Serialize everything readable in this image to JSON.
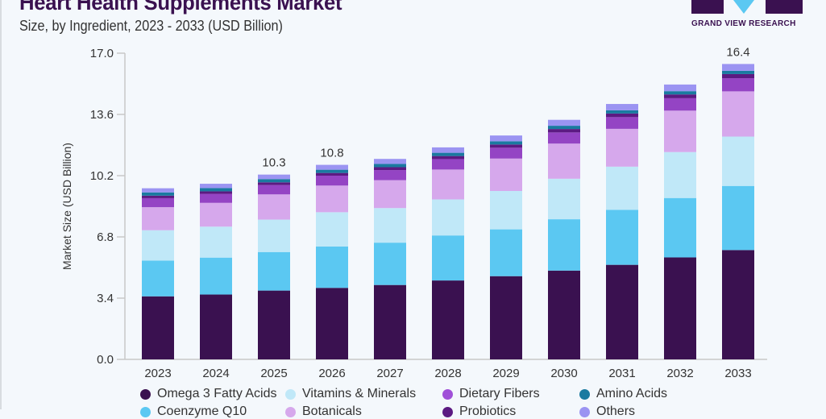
{
  "header": {
    "title": "Heart Health Supplements Market",
    "subtitle": "Size, by Ingredient, 2023 - 2033 (USD Billion)",
    "brand": "GRAND VIEW RESEARCH"
  },
  "chart_data": {
    "type": "bar",
    "stacked": true,
    "title": "Heart Health Supplements Market",
    "ylabel": "Market Size (USD Billion)",
    "xlabel": "",
    "ylim": [
      0,
      17
    ],
    "yticks": [
      "0.0",
      "3.4",
      "6.8",
      "10.2",
      "13.6",
      "17.0"
    ],
    "categories": [
      "2023",
      "2024",
      "2025",
      "2026",
      "2027",
      "2028",
      "2029",
      "2030",
      "2031",
      "2032",
      "2033"
    ],
    "series": [
      {
        "name": "Omega 3 Fatty Acids",
        "color": "#3a1150",
        "values": [
          3.5,
          3.6,
          3.82,
          3.97,
          4.13,
          4.38,
          4.62,
          4.93,
          5.25,
          5.66,
          6.07
        ]
      },
      {
        "name": "Coenzyme Q10",
        "color": "#5bc8f2",
        "values": [
          1.98,
          2.05,
          2.14,
          2.3,
          2.35,
          2.5,
          2.6,
          2.85,
          3.05,
          3.3,
          3.56
        ]
      },
      {
        "name": "Vitamins & Minerals",
        "color": "#c0e8f8",
        "values": [
          1.69,
          1.72,
          1.8,
          1.9,
          1.92,
          2.0,
          2.13,
          2.25,
          2.4,
          2.55,
          2.74
        ]
      },
      {
        "name": "Botanicals",
        "color": "#d6a8ec",
        "values": [
          1.28,
          1.32,
          1.4,
          1.48,
          1.55,
          1.66,
          1.8,
          1.95,
          2.1,
          2.3,
          2.51
        ]
      },
      {
        "name": "Dietary Fibers",
        "color": "#9444c4",
        "values": [
          0.5,
          0.5,
          0.52,
          0.55,
          0.56,
          0.58,
          0.6,
          0.62,
          0.65,
          0.69,
          0.73
        ]
      },
      {
        "name": "Probiotics",
        "color": "#5c1a82",
        "values": [
          0.14,
          0.14,
          0.15,
          0.15,
          0.16,
          0.17,
          0.18,
          0.19,
          0.2,
          0.21,
          0.23
        ]
      },
      {
        "name": "Amino Acids",
        "color": "#1a7aa0",
        "values": [
          0.18,
          0.18,
          0.18,
          0.18,
          0.18,
          0.18,
          0.18,
          0.18,
          0.18,
          0.18,
          0.18
        ]
      },
      {
        "name": "Others",
        "color": "#9b94f2",
        "values": [
          0.23,
          0.24,
          0.25,
          0.27,
          0.28,
          0.3,
          0.32,
          0.33,
          0.35,
          0.37,
          0.38
        ]
      }
    ],
    "data_labels": [
      {
        "category": "2025",
        "text": "10.3"
      },
      {
        "category": "2026",
        "text": "10.8"
      },
      {
        "category": "2033",
        "text": "16.4"
      }
    ],
    "legend_position": "bottom",
    "grid": false
  },
  "legend": {
    "items": [
      {
        "label": "Omega 3 Fatty Acids",
        "color": "#3a1150"
      },
      {
        "label": "Vitamins & Minerals",
        "color": "#c0e8f8"
      },
      {
        "label": "Dietary Fibers",
        "color": "#a050d8"
      },
      {
        "label": "Amino Acids",
        "color": "#1a7aa0"
      },
      {
        "label": "Coenzyme Q10",
        "color": "#5bc8f2"
      },
      {
        "label": "Botanicals",
        "color": "#d6a8ec"
      },
      {
        "label": "Probiotics",
        "color": "#5c1a82"
      },
      {
        "label": "Others",
        "color": "#9b94f2"
      }
    ]
  }
}
